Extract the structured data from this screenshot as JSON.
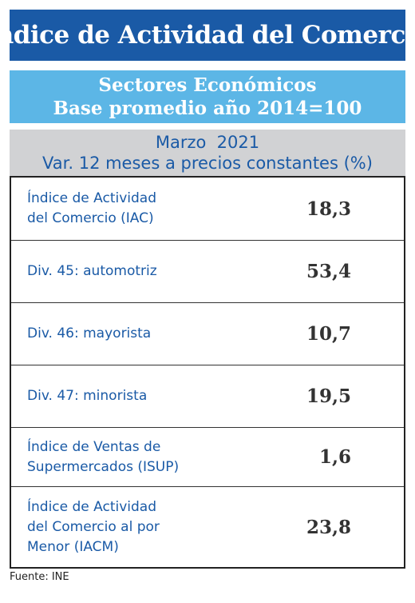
{
  "header": {
    "title": "Índice de Actividad del Comercio",
    "subtitle_line1": "Sectores Económicos",
    "subtitle_line2": "Base promedio año 2014=100"
  },
  "period": {
    "line1": "Marzo  2021",
    "line2": "Var. 12 meses a precios constantes (%)"
  },
  "table": {
    "rows": [
      {
        "label": "Índice de Actividad\ndel Comercio (IAC)",
        "value": "18,3"
      },
      {
        "label": "Div. 45: automotriz",
        "value": "53,4"
      },
      {
        "label": "Div. 46: mayorista",
        "value": "10,7"
      },
      {
        "label": "Div. 47: minorista",
        "value": "19,5"
      },
      {
        "label": "Índice de Ventas de\nSupermercados (ISUP)",
        "value": "1,6"
      },
      {
        "label": "Índice de Actividad\ndel Comercio al por\nMenor (IACM)",
        "value": "23,8"
      }
    ]
  },
  "footer": {
    "source": "Fuente: INE"
  },
  "colors": {
    "title_bg": "#1a5aa6",
    "subtitle_bg": "#5cb6e6",
    "period_bg": "#d1d2d4",
    "label_text": "#1a5aa6",
    "value_text": "#333333"
  }
}
